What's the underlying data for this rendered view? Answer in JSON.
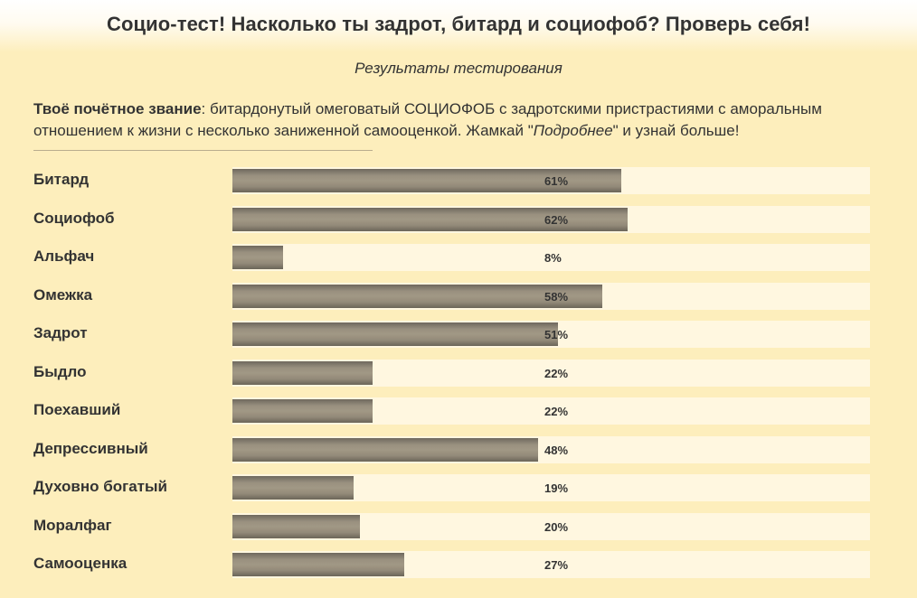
{
  "header": {
    "title": "Социо-тест! Насколько ты задрот, битард и социофоб? Проверь себя!"
  },
  "results": {
    "subtitle": "Результаты тестирования",
    "rank_label": "Твоё почётное звание",
    "rank_text": ": битардонутый омеговатый СОЦИОФОБ с задротскими пристрастиями с аморальным отношением к жизни с несколько заниженной самооценкой. Жамкай \"",
    "rank_link_word": "Подробнее",
    "rank_tail": "\" и узнай больше!"
  },
  "scores": [
    {
      "label": "Битард",
      "percent": 61,
      "text": "61%"
    },
    {
      "label": "Социофоб",
      "percent": 62,
      "text": "62%"
    },
    {
      "label": "Альфач",
      "percent": 8,
      "text": "8%"
    },
    {
      "label": "Омежка",
      "percent": 58,
      "text": "58%"
    },
    {
      "label": "Задрот",
      "percent": 51,
      "text": "51%"
    },
    {
      "label": "Быдло",
      "percent": 22,
      "text": "22%"
    },
    {
      "label": "Поехавший",
      "percent": 22,
      "text": "22%"
    },
    {
      "label": "Депрессивный",
      "percent": 48,
      "text": "48%"
    },
    {
      "label": "Духовно богатый",
      "percent": 19,
      "text": "19%"
    },
    {
      "label": "Моралфаг",
      "percent": 20,
      "text": "20%"
    },
    {
      "label": "Самооценка",
      "percent": 27,
      "text": "27%"
    }
  ]
}
